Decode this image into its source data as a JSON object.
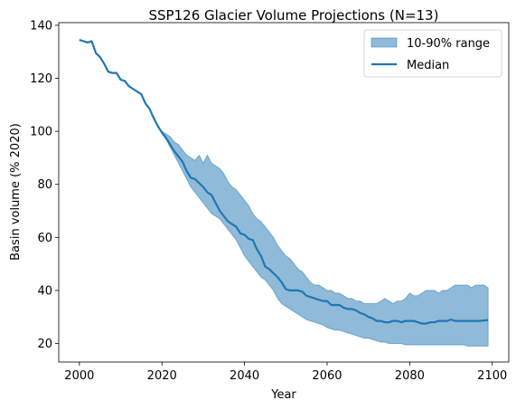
{
  "chart_data": {
    "type": "area",
    "title": "SSP126 Glacier Volume Projections (N=13)",
    "xlabel": "Year",
    "ylabel": "Basin volume (% 2020)",
    "xlim": [
      1995,
      2104
    ],
    "ylim": [
      13,
      141
    ],
    "xticks": [
      2000,
      2020,
      2040,
      2060,
      2080,
      2100
    ],
    "yticks": [
      20,
      40,
      60,
      80,
      100,
      120,
      140
    ],
    "grid": false,
    "legend_position": "top-right",
    "colors": {
      "band": "#1f77b4",
      "median": "#1f77b4"
    },
    "band": {
      "name": "10-90% range",
      "x": [
        2020,
        2021,
        2022,
        2023,
        2024,
        2025,
        2026,
        2027,
        2028,
        2029,
        2030,
        2031,
        2032,
        2033,
        2034,
        2035,
        2036,
        2037,
        2038,
        2039,
        2040,
        2041,
        2042,
        2043,
        2044,
        2045,
        2046,
        2047,
        2048,
        2049,
        2050,
        2051,
        2052,
        2053,
        2054,
        2055,
        2056,
        2057,
        2058,
        2059,
        2060,
        2061,
        2062,
        2063,
        2064,
        2065,
        2066,
        2067,
        2068,
        2069,
        2070,
        2071,
        2072,
        2073,
        2074,
        2075,
        2076,
        2077,
        2078,
        2079,
        2080,
        2081,
        2082,
        2083,
        2084,
        2085,
        2086,
        2087,
        2088,
        2089,
        2090,
        2091,
        2092,
        2093,
        2094,
        2095,
        2096,
        2097,
        2098,
        2099
      ],
      "upper": [
        100,
        99,
        98,
        96,
        95,
        93,
        91,
        90,
        89,
        91,
        88,
        91,
        88,
        87,
        86,
        84,
        81,
        79,
        78,
        76,
        74,
        72,
        69,
        67,
        66,
        64,
        62,
        60,
        57,
        55,
        53,
        52,
        50,
        48,
        47,
        45,
        43,
        42,
        42,
        41,
        40,
        40,
        39,
        39,
        38,
        37,
        37,
        36,
        36,
        35,
        35,
        35,
        35,
        36,
        37,
        36,
        35,
        36,
        36,
        37,
        39,
        38,
        38,
        39,
        40,
        40,
        40,
        39,
        40,
        40,
        41,
        42,
        42,
        42,
        42,
        41,
        42,
        42,
        42,
        41
      ],
      "lower": [
        99,
        97,
        94,
        91,
        88,
        85,
        82,
        79,
        77,
        75,
        73,
        71,
        69,
        68,
        67,
        65,
        63,
        61,
        59,
        56,
        53,
        51,
        49,
        47,
        45,
        44,
        42,
        40,
        37,
        35,
        34,
        33,
        32,
        31,
        30,
        29,
        28.5,
        28,
        27.5,
        27,
        26,
        25.5,
        25,
        25,
        24.5,
        24,
        23.5,
        23,
        22.5,
        22,
        22,
        21.5,
        21,
        20.5,
        20.5,
        20,
        20,
        20,
        20,
        19.5,
        19.5,
        19.5,
        19.5,
        19.5,
        19.5,
        19.5,
        19.5,
        19.5,
        19.5,
        19.5,
        19.5,
        19.5,
        19.5,
        19.5,
        19,
        19,
        19,
        19,
        19,
        19
      ]
    },
    "series": [
      {
        "name": "Median",
        "x": [
          2000,
          2001,
          2002,
          2003,
          2004,
          2005,
          2006,
          2007,
          2008,
          2009,
          2010,
          2011,
          2012,
          2013,
          2014,
          2015,
          2016,
          2017,
          2018,
          2019,
          2020,
          2021,
          2022,
          2023,
          2024,
          2025,
          2026,
          2027,
          2028,
          2029,
          2030,
          2031,
          2032,
          2033,
          2034,
          2035,
          2036,
          2037,
          2038,
          2039,
          2040,
          2041,
          2042,
          2043,
          2044,
          2045,
          2046,
          2047,
          2048,
          2049,
          2050,
          2051,
          2052,
          2053,
          2054,
          2055,
          2056,
          2057,
          2058,
          2059,
          2060,
          2061,
          2062,
          2063,
          2064,
          2065,
          2066,
          2067,
          2068,
          2069,
          2070,
          2071,
          2072,
          2073,
          2074,
          2075,
          2076,
          2077,
          2078,
          2079,
          2080,
          2081,
          2082,
          2083,
          2084,
          2085,
          2086,
          2087,
          2088,
          2089,
          2090,
          2091,
          2092,
          2093,
          2094,
          2095,
          2096,
          2097,
          2098,
          2099
        ],
        "values": [
          134.5,
          134,
          133.5,
          134,
          129.5,
          128,
          125.5,
          122.5,
          122,
          122,
          119.5,
          119,
          117,
          116,
          115,
          114,
          110.5,
          108.5,
          105,
          102,
          99.5,
          97.5,
          95,
          92.5,
          90.5,
          88.5,
          85,
          82.5,
          82,
          80.5,
          79,
          77,
          76,
          73,
          70,
          68,
          66,
          65,
          64,
          61.5,
          61,
          59.5,
          59,
          55.5,
          53,
          49,
          48,
          46.5,
          45,
          43,
          40.5,
          40,
          40,
          40,
          39.5,
          38,
          37.5,
          37,
          36.5,
          36,
          36,
          34.5,
          34.5,
          34.5,
          33.5,
          33,
          33,
          32.5,
          31.5,
          31,
          30,
          29.5,
          28.5,
          28.5,
          28,
          28,
          28.5,
          28.5,
          28,
          28.5,
          28.5,
          28.5,
          28,
          27.5,
          27.5,
          28,
          28,
          28.5,
          28.5,
          28.5,
          29,
          28.5,
          28.5,
          28.5,
          28.5,
          28.5,
          28.5,
          28.5,
          28.7,
          28.8
        ]
      }
    ]
  }
}
